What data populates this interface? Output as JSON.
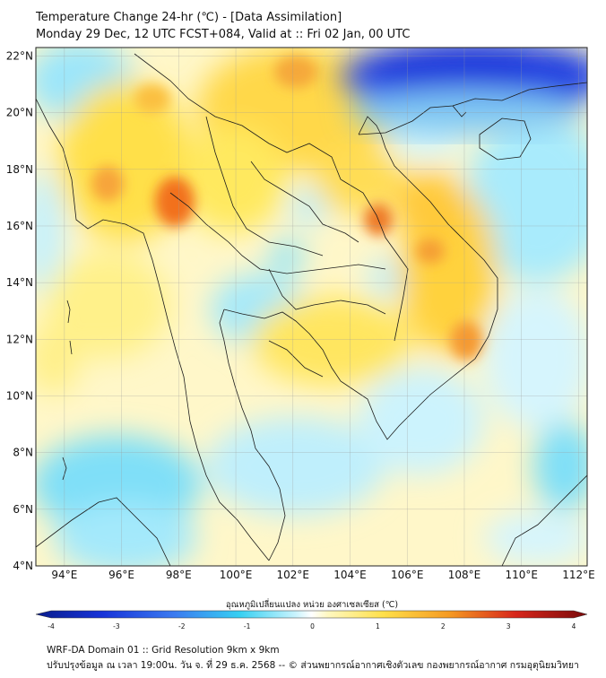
{
  "header": {
    "title_line1": "Temperature Change 24-hr (℃) - [Data Assimilation]",
    "title_line2": "Monday 29 Dec, 12 UTC FCST+084, Valid at :: Fri 02 Jan, 00 UTC"
  },
  "map": {
    "lat_labels": [
      "22°N",
      "20°N",
      "18°N",
      "16°N",
      "14°N",
      "12°N",
      "10°N",
      "8°N",
      "6°N",
      "4°N"
    ],
    "lat_values": [
      22,
      20,
      18,
      16,
      14,
      12,
      10,
      8,
      6,
      4
    ],
    "lon_labels": [
      "94°E",
      "96°E",
      "98°E",
      "100°E",
      "102°E",
      "104°E",
      "106°E",
      "108°E",
      "110°E",
      "112°E"
    ],
    "lon_values": [
      94,
      96,
      98,
      100,
      102,
      104,
      106,
      108,
      110,
      112
    ],
    "lon_range": [
      93.0,
      112.3
    ],
    "lat_range": [
      4.0,
      22.3
    ],
    "colors": {
      "cold": "#0a1fd6",
      "cool": "#56d2f2",
      "neutral": "#ffffff",
      "warm": "#ffe04a",
      "hot": "#f08a1c",
      "extreme": "#c3171a"
    }
  },
  "colorbar": {
    "label": "อุณหภูมิเปลี่ยนแปลง หน่วย องศาเซลเซียส (℃)",
    "tick_labels": [
      "-4",
      "-3",
      "-2",
      "-1",
      "0",
      "1",
      "2",
      "3",
      "4"
    ],
    "tick_values": [
      -4,
      -3,
      -2,
      -1,
      0,
      1,
      2,
      3,
      4
    ]
  },
  "footer": {
    "line1": "WRF-DA Domain 01 :: Grid Resolution 9km x 9km",
    "line2": "ปรับปรุงข้อมูล ณ เวลา 19:00น. วัน จ. ที่ 29 ธ.ค. 2568 -- © ส่วนพยากรณ์อากาศเชิงตัวเลข กองพยากรณ์อากาศ กรมอุตุนิยมวิทยา"
  }
}
